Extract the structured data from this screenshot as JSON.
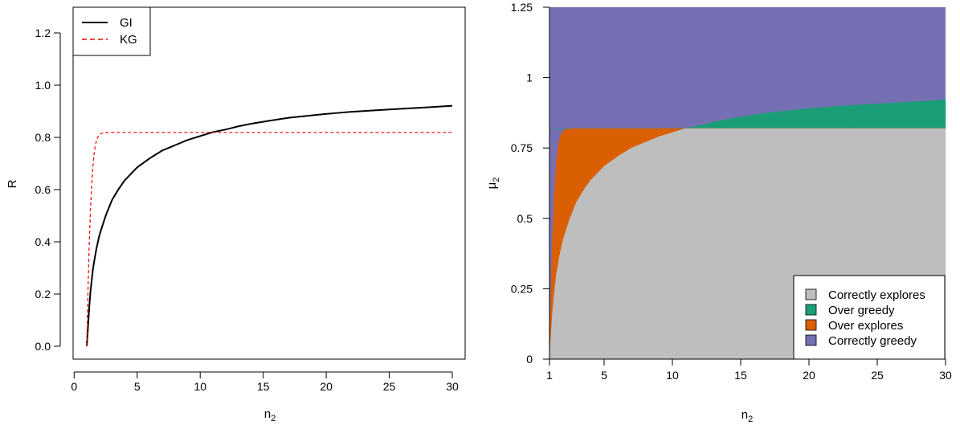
{
  "chart_data": [
    {
      "type": "line",
      "xlabel": "n",
      "xlabel_sub": "2",
      "ylabel": "R",
      "xlim": [
        0,
        30
      ],
      "ylim": [
        0,
        1.3
      ],
      "xticks": [
        0,
        5,
        10,
        15,
        20,
        25,
        30
      ],
      "xtick_labels": [
        "0",
        "5",
        "10",
        "15",
        "20",
        "25",
        "30"
      ],
      "yticks": [
        0,
        0.2,
        0.4,
        0.6,
        0.8,
        1.0,
        1.2
      ],
      "ytick_labels": [
        "0.0",
        "0.2",
        "0.4",
        "0.6",
        "0.8",
        "1.0",
        "1.2"
      ],
      "legend_position": "top-left",
      "series": [
        {
          "name": "GI",
          "color": "#000000",
          "style": "solid",
          "x": [
            1,
            1.25,
            1.5,
            1.75,
            2,
            2.5,
            3,
            3.5,
            4,
            5,
            6,
            7,
            8,
            9,
            10,
            11,
            12,
            13,
            14,
            15,
            17,
            20,
            22,
            25,
            28,
            30
          ],
          "y": [
            0.0,
            0.19,
            0.3,
            0.37,
            0.425,
            0.5,
            0.56,
            0.6,
            0.635,
            0.685,
            0.72,
            0.75,
            0.77,
            0.79,
            0.805,
            0.82,
            0.83,
            0.842,
            0.852,
            0.86,
            0.875,
            0.89,
            0.898,
            0.907,
            0.915,
            0.921
          ]
        },
        {
          "name": "KG",
          "color": "#ff0000",
          "style": "dashed",
          "x": [
            1,
            1.1,
            1.2,
            1.3,
            1.4,
            1.5,
            1.6,
            1.7,
            1.8,
            1.9,
            2,
            2.2,
            2.4,
            2.6,
            2.8,
            3,
            4,
            5,
            10,
            20,
            30
          ],
          "y": [
            0.0,
            0.22,
            0.4,
            0.53,
            0.63,
            0.7,
            0.745,
            0.775,
            0.793,
            0.804,
            0.811,
            0.816,
            0.818,
            0.819,
            0.819,
            0.819,
            0.819,
            0.819,
            0.819,
            0.819,
            0.819
          ]
        }
      ]
    },
    {
      "type": "area",
      "xlabel": "n",
      "xlabel_sub": "2",
      "ylabel": "μ",
      "ylabel_sub": "2",
      "xlim": [
        1,
        30
      ],
      "ylim": [
        0,
        1.25
      ],
      "xticks": [
        1,
        5,
        10,
        15,
        20,
        25,
        30
      ],
      "xtick_labels": [
        "1",
        "5",
        "10",
        "15",
        "20",
        "25",
        "30"
      ],
      "yticks": [
        0,
        0.25,
        0.5,
        0.75,
        1,
        1.25
      ],
      "ytick_labels": [
        "0",
        "0.25",
        "0.5",
        "0.75",
        "1",
        "1.25"
      ],
      "legend_position": "bottom-right",
      "kg_level": 0.819,
      "gi_boundary": {
        "x": [
          1,
          1.25,
          1.5,
          1.75,
          2,
          2.5,
          3,
          3.5,
          4,
          5,
          6,
          7,
          8,
          9,
          10,
          11,
          12,
          13,
          14,
          15,
          17,
          20,
          22,
          25,
          28,
          30
        ],
        "y": [
          0.0,
          0.19,
          0.3,
          0.37,
          0.425,
          0.5,
          0.56,
          0.6,
          0.635,
          0.685,
          0.72,
          0.75,
          0.77,
          0.79,
          0.805,
          0.82,
          0.83,
          0.842,
          0.852,
          0.86,
          0.875,
          0.89,
          0.898,
          0.907,
          0.915,
          0.921
        ]
      },
      "kg_boundary": {
        "x": [
          1,
          1.1,
          1.2,
          1.3,
          1.4,
          1.5,
          1.6,
          1.7,
          1.8,
          1.9,
          2,
          2.2,
          2.4,
          2.6,
          2.8,
          3,
          30
        ],
        "y": [
          0.0,
          0.22,
          0.4,
          0.53,
          0.63,
          0.7,
          0.745,
          0.775,
          0.793,
          0.804,
          0.811,
          0.816,
          0.818,
          0.819,
          0.819,
          0.819,
          0.819
        ]
      },
      "regions": [
        {
          "name": "Correctly explores",
          "color": "#bebebe"
        },
        {
          "name": "Over greedy",
          "color": "#1b9e77"
        },
        {
          "name": "Over explores",
          "color": "#d95f02"
        },
        {
          "name": "Correctly greedy",
          "color": "#7570b3"
        }
      ]
    }
  ]
}
